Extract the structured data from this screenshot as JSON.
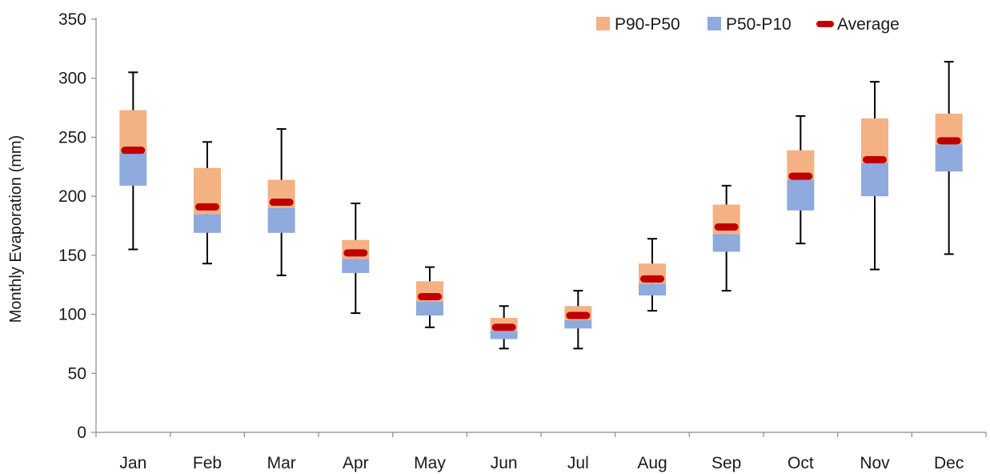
{
  "chart_data": {
    "type": "box",
    "title": "",
    "xlabel": "",
    "ylabel": "Monthly Evaporation (mm)",
    "ylim": [
      0,
      350
    ],
    "yticks": [
      0,
      50,
      100,
      150,
      200,
      250,
      300,
      350
    ],
    "grid": false,
    "legend_position": "top-right",
    "categories": [
      "Jan",
      "Feb",
      "Mar",
      "Apr",
      "May",
      "Jun",
      "Jul",
      "Aug",
      "Sep",
      "Oct",
      "Nov",
      "Dec"
    ],
    "series": [
      {
        "name": "P90-P50",
        "color": "#f4b183",
        "low": [
          237,
          185,
          190,
          147,
          111,
          86,
          95,
          126,
          168,
          214,
          228,
          244
        ],
        "high": [
          273,
          224,
          214,
          163,
          128,
          97,
          107,
          143,
          193,
          239,
          266,
          270
        ]
      },
      {
        "name": "P50-P10",
        "color": "#8faadc",
        "low": [
          209,
          169,
          169,
          135,
          99,
          79,
          88,
          116,
          153,
          188,
          200,
          221
        ],
        "high": [
          237,
          185,
          190,
          147,
          111,
          86,
          95,
          126,
          168,
          214,
          228,
          244
        ]
      },
      {
        "name": "Average",
        "color": "#c00000",
        "values": [
          239,
          191,
          195,
          152,
          115,
          89,
          99,
          130,
          174,
          217,
          231,
          247
        ]
      }
    ],
    "whiskers": {
      "min": [
        155,
        143,
        133,
        101,
        89,
        71,
        71,
        103,
        120,
        160,
        138,
        151
      ],
      "max": [
        305,
        246,
        257,
        194,
        140,
        107,
        120,
        164,
        209,
        268,
        297,
        314
      ]
    }
  }
}
